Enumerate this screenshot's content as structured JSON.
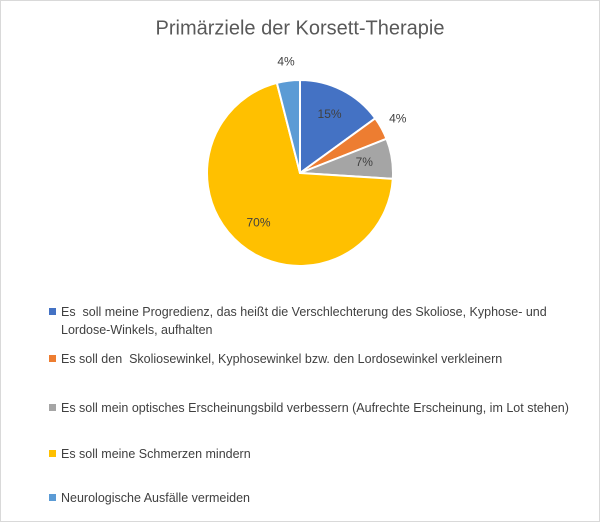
{
  "chart_data": {
    "type": "pie",
    "title": "Primärziele der Korsett-Therapie",
    "series": [
      {
        "name": "Es  soll meine Progredienz, das heißt die Verschlechterung des Skoliose, Kyphose- und Lordose-Winkels, aufhalten",
        "color": "#4472c4"
      },
      {
        "name": "Es soll den  Skoliosewinkel, Kyphosewinkel bzw. den Lordosewinkel verkleinern",
        "color": "#ed7d31"
      },
      {
        "name": "Es soll mein optisches Erscheinungsbild verbessern (Aufrechte Erscheinung, im Lot stehen)",
        "color": "#a5a5a5"
      },
      {
        "name": "Es soll meine Schmerzen mindern",
        "color": "#ffc000"
      },
      {
        "name": "Neurologische Ausfälle vermeiden",
        "color": "#5b9bd5"
      }
    ],
    "values": [
      15,
      4,
      7,
      70,
      4
    ],
    "value_labels": [
      "15%",
      "4%",
      "7%",
      "70%",
      "4%"
    ]
  }
}
